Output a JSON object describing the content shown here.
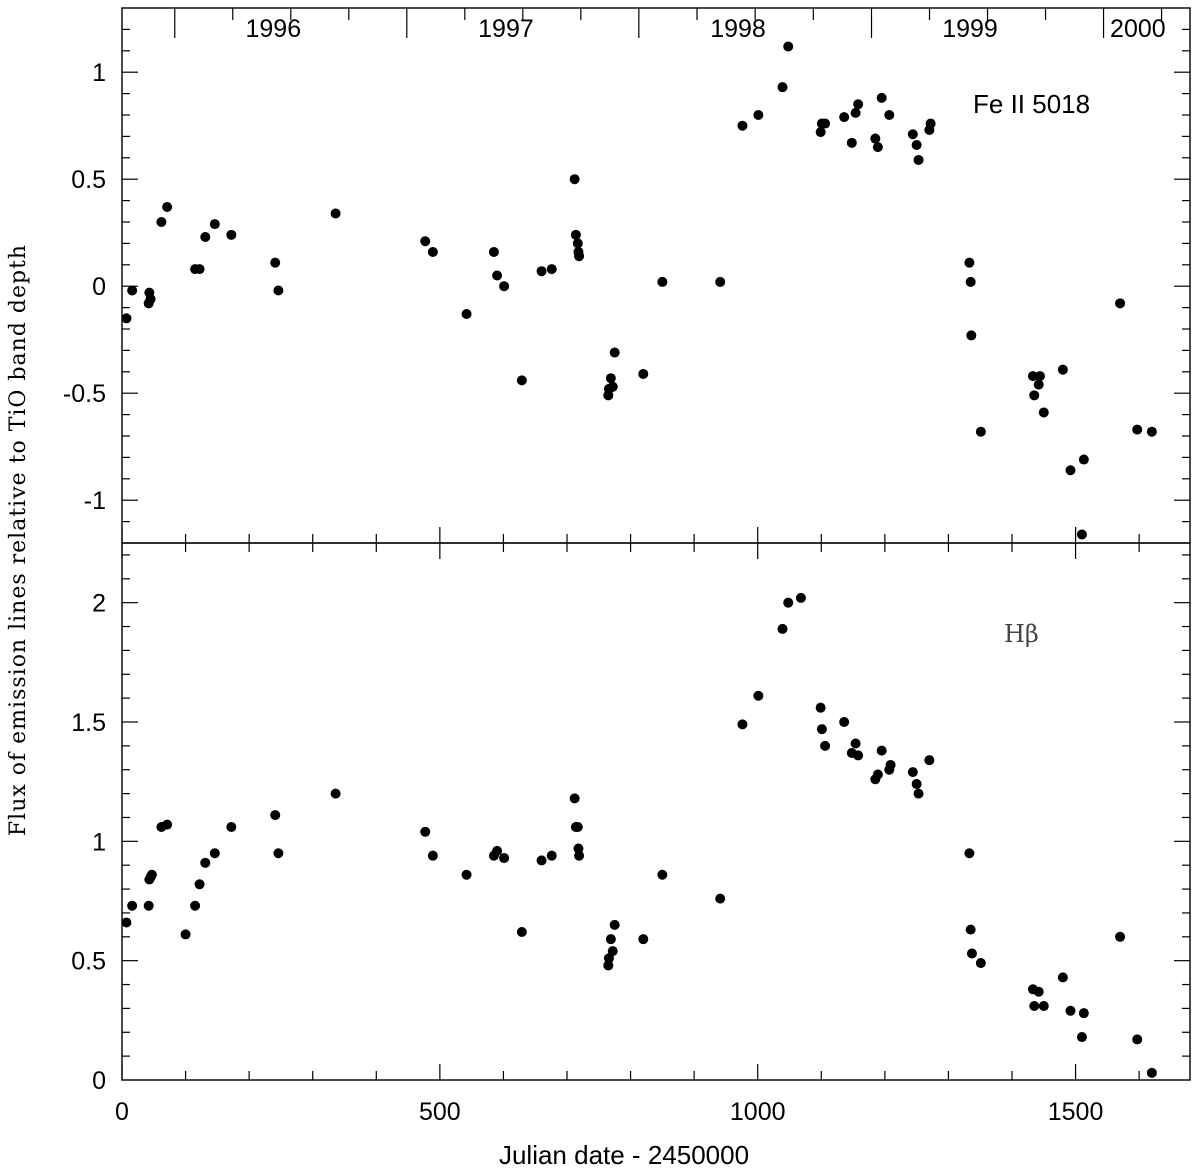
{
  "chart_data": {
    "type": "scatter",
    "xlabel": "Julian date - 2450000",
    "ylabel": "Flux of emission lines relative to TiO band depth",
    "xlim": [
      0,
      1680
    ],
    "x_ticks": [
      0,
      500,
      1000,
      1500
    ],
    "x_minor_step": 100,
    "year_labels": [
      {
        "label": "1996",
        "x": 238
      },
      {
        "label": "1997",
        "x": 604
      },
      {
        "label": "1998",
        "x": 969
      },
      {
        "label": "1999",
        "x": 1334
      },
      {
        "label": "2000",
        "x": 1598
      }
    ],
    "year_boundaries": [
      83,
      448,
      813,
      1179,
      1544
    ],
    "panels": [
      {
        "label": "Fe II 5018",
        "ylim": [
          -1.2,
          1.3
        ],
        "y_ticks": [
          -1,
          -0.5,
          0,
          0.5,
          1
        ],
        "y_tick_labels": [
          "-1",
          "-0.5",
          "0",
          "0.5",
          "1"
        ],
        "y_minor_step": 0.1,
        "points": [
          [
            7,
            -0.15
          ],
          [
            16,
            -0.02
          ],
          [
            42,
            -0.08
          ],
          [
            43,
            -0.03
          ],
          [
            45,
            -0.06
          ],
          [
            62,
            0.3
          ],
          [
            71,
            0.37
          ],
          [
            115,
            0.08
          ],
          [
            122,
            0.08
          ],
          [
            131,
            0.23
          ],
          [
            146,
            0.29
          ],
          [
            172,
            0.24
          ],
          [
            241,
            0.11
          ],
          [
            246,
            -0.02
          ],
          [
            336,
            0.34
          ],
          [
            477,
            0.21
          ],
          [
            489,
            0.16
          ],
          [
            542,
            -0.13
          ],
          [
            585,
            0.16
          ],
          [
            590,
            0.05
          ],
          [
            601,
            0.0
          ],
          [
            629,
            -0.44
          ],
          [
            660,
            0.07
          ],
          [
            676,
            0.08
          ],
          [
            712,
            0.5
          ],
          [
            714,
            0.24
          ],
          [
            717,
            0.2
          ],
          [
            718,
            0.16
          ],
          [
            719,
            0.14
          ],
          [
            765,
            -0.51
          ],
          [
            766,
            -0.48
          ],
          [
            769,
            -0.43
          ],
          [
            772,
            -0.47
          ],
          [
            775,
            -0.31
          ],
          [
            820,
            -0.41
          ],
          [
            850,
            0.02
          ],
          [
            941,
            0.02
          ],
          [
            976,
            0.75
          ],
          [
            1001,
            0.8
          ],
          [
            1039,
            0.93
          ],
          [
            1048,
            1.12
          ],
          [
            1099,
            0.72
          ],
          [
            1101,
            0.76
          ],
          [
            1106,
            0.76
          ],
          [
            1136,
            0.79
          ],
          [
            1148,
            0.67
          ],
          [
            1154,
            0.81
          ],
          [
            1158,
            0.85
          ],
          [
            1185,
            0.69
          ],
          [
            1189,
            0.65
          ],
          [
            1195,
            0.88
          ],
          [
            1207,
            0.8
          ],
          [
            1244,
            0.71
          ],
          [
            1250,
            0.66
          ],
          [
            1253,
            0.59
          ],
          [
            1270,
            0.73
          ],
          [
            1272,
            0.76
          ],
          [
            1333,
            0.11
          ],
          [
            1335,
            0.02
          ],
          [
            1336,
            -0.23
          ],
          [
            1351,
            -0.68
          ],
          [
            1433,
            -0.42
          ],
          [
            1435,
            -0.51
          ],
          [
            1442,
            -0.46
          ],
          [
            1444,
            -0.42
          ],
          [
            1450,
            -0.59
          ],
          [
            1480,
            -0.39
          ],
          [
            1492,
            -0.86
          ],
          [
            1510,
            -1.16
          ],
          [
            1513,
            -0.81
          ],
          [
            1570,
            -0.08
          ],
          [
            1597,
            -0.67
          ],
          [
            1620,
            -0.68
          ]
        ]
      },
      {
        "label": "Hβ",
        "ylim": [
          0,
          2.25
        ],
        "y_ticks": [
          0,
          0.5,
          1,
          1.5,
          2
        ],
        "y_tick_labels": [
          "0",
          "0.5",
          "1",
          "1.5",
          "2"
        ],
        "y_minor_step": 0.1,
        "points": [
          [
            7,
            0.66
          ],
          [
            16,
            0.73
          ],
          [
            42,
            0.73
          ],
          [
            43,
            0.84
          ],
          [
            45,
            0.85
          ],
          [
            47,
            0.86
          ],
          [
            62,
            1.06
          ],
          [
            71,
            1.07
          ],
          [
            100,
            0.61
          ],
          [
            115,
            0.73
          ],
          [
            122,
            0.82
          ],
          [
            131,
            0.91
          ],
          [
            146,
            0.95
          ],
          [
            172,
            1.06
          ],
          [
            241,
            1.11
          ],
          [
            246,
            0.95
          ],
          [
            336,
            1.2
          ],
          [
            477,
            1.04
          ],
          [
            489,
            0.94
          ],
          [
            542,
            0.86
          ],
          [
            585,
            0.94
          ],
          [
            590,
            0.96
          ],
          [
            601,
            0.93
          ],
          [
            629,
            0.62
          ],
          [
            660,
            0.92
          ],
          [
            676,
            0.94
          ],
          [
            712,
            1.18
          ],
          [
            714,
            1.06
          ],
          [
            717,
            1.06
          ],
          [
            718,
            0.97
          ],
          [
            719,
            0.94
          ],
          [
            765,
            0.48
          ],
          [
            766,
            0.51
          ],
          [
            769,
            0.59
          ],
          [
            772,
            0.54
          ],
          [
            775,
            0.65
          ],
          [
            820,
            0.59
          ],
          [
            850,
            0.86
          ],
          [
            941,
            0.76
          ],
          [
            976,
            1.49
          ],
          [
            1001,
            1.61
          ],
          [
            1039,
            1.89
          ],
          [
            1048,
            2.0
          ],
          [
            1068,
            2.02
          ],
          [
            1099,
            1.56
          ],
          [
            1101,
            1.47
          ],
          [
            1106,
            1.4
          ],
          [
            1136,
            1.5
          ],
          [
            1148,
            1.37
          ],
          [
            1154,
            1.41
          ],
          [
            1158,
            1.36
          ],
          [
            1185,
            1.26
          ],
          [
            1189,
            1.28
          ],
          [
            1195,
            1.38
          ],
          [
            1207,
            1.3
          ],
          [
            1209,
            1.32
          ],
          [
            1244,
            1.29
          ],
          [
            1250,
            1.24
          ],
          [
            1253,
            1.2
          ],
          [
            1270,
            1.34
          ],
          [
            1333,
            0.95
          ],
          [
            1335,
            0.63
          ],
          [
            1337,
            0.53
          ],
          [
            1351,
            0.49
          ],
          [
            1433,
            0.38
          ],
          [
            1435,
            0.31
          ],
          [
            1442,
            0.37
          ],
          [
            1450,
            0.31
          ],
          [
            1480,
            0.43
          ],
          [
            1492,
            0.29
          ],
          [
            1510,
            0.18
          ],
          [
            1513,
            0.28
          ],
          [
            1570,
            0.6
          ],
          [
            1597,
            0.17
          ],
          [
            1620,
            0.03
          ]
        ]
      }
    ]
  }
}
